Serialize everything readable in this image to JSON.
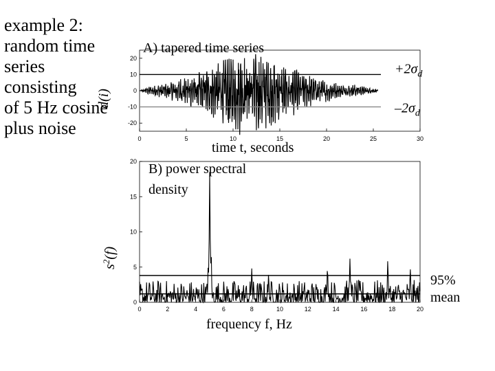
{
  "slide": {
    "title_lines": [
      "example 2:",
      "random time",
      "series",
      "consisting",
      "of 5 Hz cosine",
      "plus noise"
    ]
  },
  "chart_data": [
    {
      "type": "line",
      "title": "A) tapered time series",
      "xlabel": "time t, seconds",
      "ylabel": "d(i)",
      "xlim": [
        0,
        30
      ],
      "ylim": [
        -25,
        25
      ],
      "xticks": [
        0,
        5,
        10,
        15,
        20,
        25,
        30
      ],
      "yticks": [
        20,
        10,
        0,
        -10,
        -20
      ],
      "series": [
        {
          "description": "tapered noisy 5 Hz cosine, approx. envelope (min/max per second)",
          "x": [
            0,
            1,
            2,
            3,
            4,
            5,
            6,
            7,
            8,
            9,
            10,
            11,
            12,
            13,
            14,
            15,
            16,
            17,
            18,
            19,
            20,
            21,
            22,
            23,
            24,
            25,
            26
          ],
          "max": [
            0,
            2,
            3,
            4,
            6,
            7,
            9,
            12,
            14,
            16,
            18,
            19,
            20,
            19,
            17,
            14,
            12,
            10,
            8,
            7,
            5,
            4,
            3,
            3,
            2,
            1,
            0
          ],
          "min": [
            0,
            -2,
            -3,
            -4,
            -6,
            -8,
            -10,
            -13,
            -15,
            -18,
            -21,
            -22,
            -23,
            -21,
            -18,
            -16,
            -13,
            -11,
            -9,
            -7,
            -6,
            -4,
            -3,
            -3,
            -2,
            -1,
            0
          ]
        }
      ],
      "reference_lines": [
        {
          "label": "+2σd",
          "text": "+2",
          "symbol": "σ",
          "subscript": "d",
          "y": 10,
          "color": "#000000"
        },
        {
          "label": "–2σd",
          "text": "–2",
          "symbol": "σ",
          "subscript": "d",
          "y": -10,
          "color": "#888888"
        }
      ]
    },
    {
      "type": "line",
      "title_lines": [
        "B) power spectral",
        "density"
      ],
      "xlabel": "frequency f, Hz",
      "ylabel": "s2(f)",
      "xlim": [
        0,
        20
      ],
      "ylim": [
        0,
        20
      ],
      "xticks": [
        0,
        2,
        4,
        6,
        8,
        10,
        12,
        14,
        16,
        18,
        20
      ],
      "yticks": [
        20,
        15,
        10,
        5,
        0
      ],
      "series": [
        {
          "description": "power spectral density, noise floor with peak at 5 Hz",
          "peak": {
            "x": 5.0,
            "y": 18.5
          },
          "secondary_peaks": [
            [
              4.9,
              5.5
            ],
            [
              5.1,
              7.2
            ],
            [
              8.0,
              4.8
            ],
            [
              9.2,
              4.0
            ],
            [
              13.4,
              5.0
            ],
            [
              15.0,
              6.2
            ],
            [
              17.7,
              6.0
            ],
            [
              19.3,
              4.8
            ]
          ]
        }
      ],
      "reference_lines": [
        {
          "label": "95%",
          "y": 3.8,
          "color": "#000000"
        },
        {
          "label": "mean",
          "y": 1.2,
          "color": "#000000"
        }
      ]
    }
  ]
}
